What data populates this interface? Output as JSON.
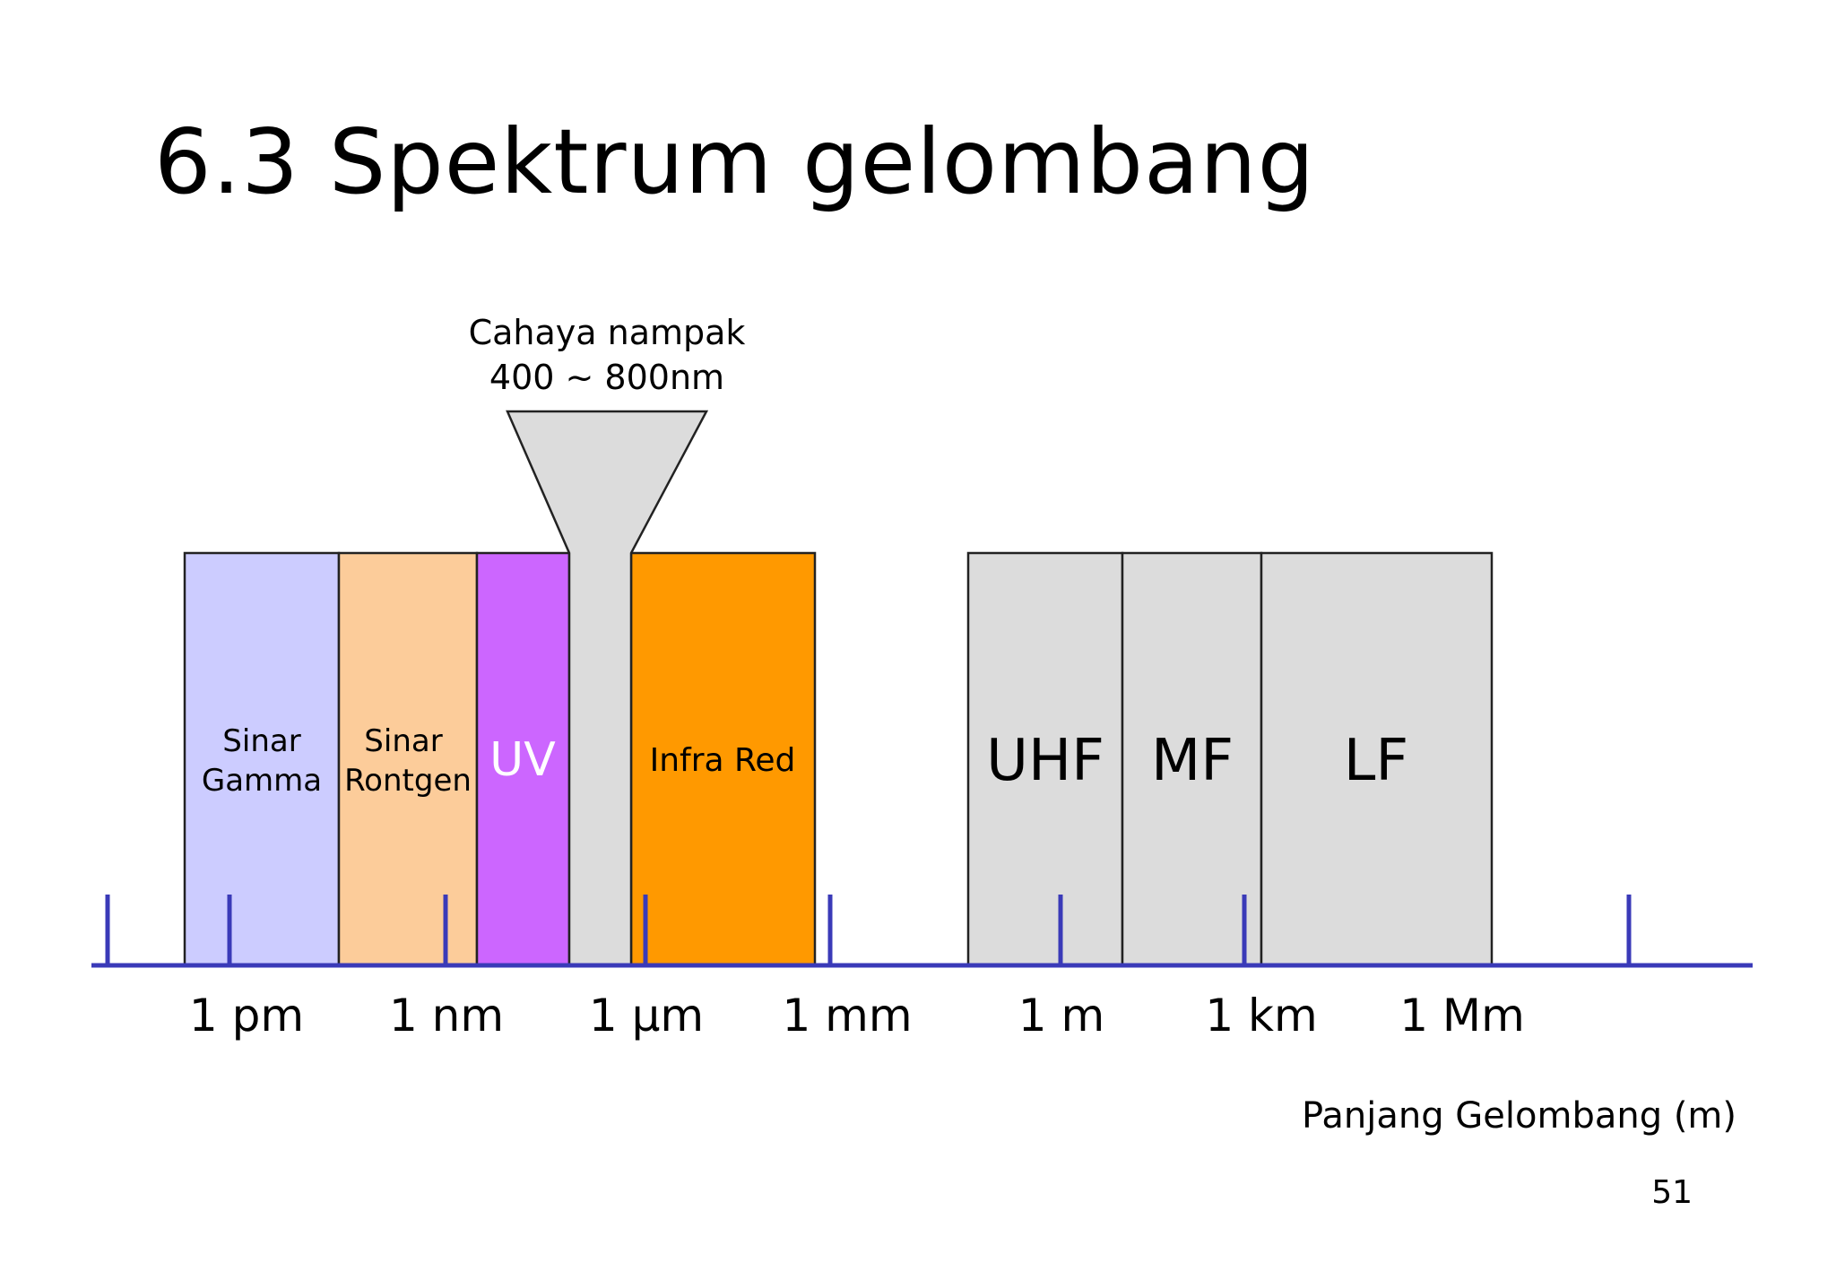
{
  "slide": {
    "title": "6.3 Spektrum gelombang",
    "page_number": "51"
  },
  "diagram": {
    "visible_light": {
      "label_line1": "Cahaya nampak",
      "label_line2": "400 ~ 800nm",
      "color": "#dcdcdc"
    },
    "bands": [
      {
        "id": "gamma",
        "lines": [
          "Sinar",
          "Gamma"
        ],
        "color": "#ccccff",
        "text_color": "#000000"
      },
      {
        "id": "rontgen",
        "lines": [
          "Sinar",
          "Rontgen"
        ],
        "color": "#fccc9a",
        "text_color": "#000000"
      },
      {
        "id": "uv",
        "lines": [
          "UV"
        ],
        "color": "#cc66ff",
        "text_color": "#ffffff"
      },
      {
        "id": "infrared",
        "lines": [
          "Infra Red"
        ],
        "color": "#ff9900",
        "text_color": "#000000"
      },
      {
        "id": "uhf",
        "lines": [
          "UHF"
        ],
        "color": "#dcdcdc",
        "text_color": "#000000"
      },
      {
        "id": "mf",
        "lines": [
          "MF"
        ],
        "color": "#dcdcdc",
        "text_color": "#000000"
      },
      {
        "id": "lf",
        "lines": [
          "LF"
        ],
        "color": "#dcdcdc",
        "text_color": "#000000"
      }
    ],
    "axis": {
      "color": "#3a3ab8",
      "tick_labels": [
        "1 pm",
        "1 nm",
        "1 μm",
        "1 mm",
        "1 m",
        "1 km",
        "1 Mm"
      ],
      "title": "Panjang Gelombang (m)"
    }
  }
}
